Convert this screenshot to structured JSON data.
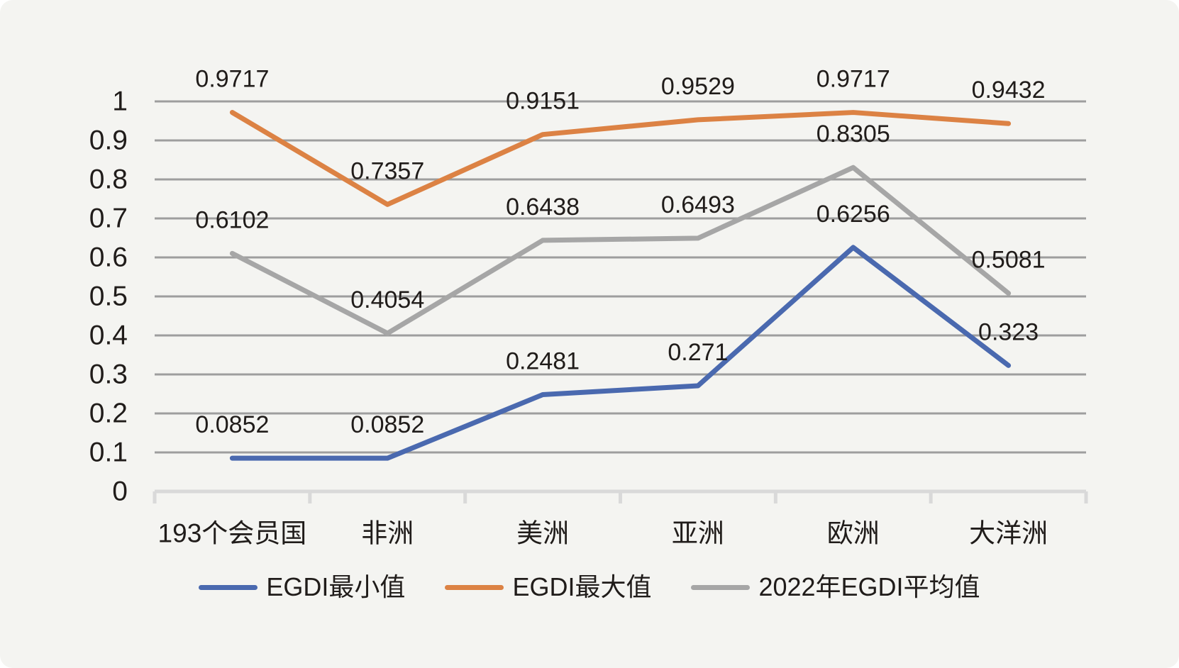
{
  "chart_data": {
    "type": "line",
    "title": "",
    "categories": [
      "193个会员国",
      "非洲",
      "美洲",
      "亚洲",
      "欧洲",
      "大洋洲"
    ],
    "series": [
      {
        "name": "EGDI最小值",
        "color": "#4a69af",
        "values": [
          0.0852,
          0.0852,
          0.2481,
          0.271,
          0.6256,
          0.323
        ],
        "labels": [
          "0.0852",
          "0.0852",
          "0.2481",
          "0.271",
          "0.6256",
          "0.323"
        ]
      },
      {
        "name": "EGDI最大值",
        "color": "#dc8244",
        "values": [
          0.9717,
          0.7357,
          0.9151,
          0.9529,
          0.9717,
          0.9432
        ],
        "labels": [
          "0.9717",
          "0.7357",
          "0.9151",
          "0.9529",
          "0.9717",
          "0.9432"
        ]
      },
      {
        "name": "2022年EGDI平均值",
        "color": "#a6a6a6",
        "values": [
          0.6102,
          0.4054,
          0.6438,
          0.6493,
          0.8305,
          0.5081
        ],
        "labels": [
          "0.6102",
          "0.4054",
          "0.6438",
          "0.6493",
          "0.8305",
          "0.5081"
        ]
      }
    ],
    "y_axis": {
      "min": 0,
      "max": 1,
      "tick_step": 0.1,
      "tick_labels": [
        "0",
        "0.1",
        "0.2",
        "0.3",
        "0.4",
        "0.5",
        "0.6",
        "0.7",
        "0.8",
        "0.9",
        "1"
      ]
    },
    "grid": true,
    "data_labels_shown": true,
    "legend_position": "bottom",
    "colors": {
      "background": "#f4f4f1",
      "gridline": "#9e9e9e",
      "axis_line": "#d9d9d9",
      "text": "#201c1a"
    }
  }
}
